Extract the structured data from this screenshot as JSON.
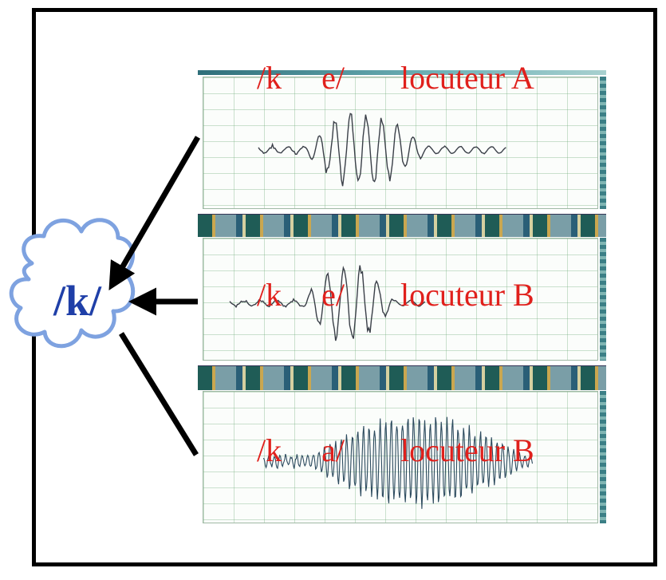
{
  "labels": [
    {
      "consonant": "/k",
      "vowel": "e/",
      "speaker": "locuteur A"
    },
    {
      "consonant": "/k",
      "vowel": "e/",
      "speaker": "locuteur B"
    },
    {
      "consonant": "/k",
      "vowel": "a/",
      "speaker": "locuteur B"
    }
  ],
  "center_label": "/k/",
  "colors": {
    "label_red": "#e0201c",
    "cloud_text": "#1f3fa8",
    "cloud_outline": "#7ea2e0",
    "waveform": "#3a3f48",
    "waveform_dense": "#2c4a5e"
  }
}
